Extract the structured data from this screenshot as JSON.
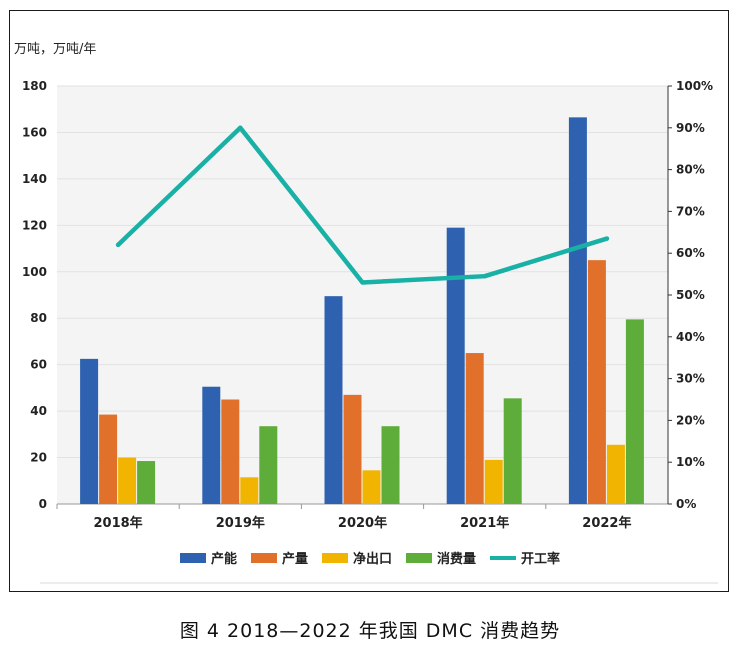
{
  "chart_data": {
    "type": "bar",
    "ylabel": "万吨，万吨/年",
    "categories": [
      "2018年",
      "2019年",
      "2020年",
      "2021年",
      "2022年"
    ],
    "ylim": [
      0,
      180
    ],
    "yticks": [
      "0",
      "20",
      "40",
      "60",
      "80",
      "100",
      "120",
      "140",
      "160",
      "180"
    ],
    "y2lim": [
      0,
      100
    ],
    "y2ticks": [
      "0%",
      "10%",
      "20%",
      "30%",
      "40%",
      "50%",
      "60%",
      "70%",
      "80%",
      "90%",
      "100%"
    ],
    "series": [
      {
        "name": "产能",
        "type": "bar",
        "color": "#2e62b0",
        "values": [
          62.5,
          50.5,
          89.5,
          119,
          166.5
        ]
      },
      {
        "name": "产量",
        "type": "bar",
        "color": "#e0702a",
        "values": [
          38.5,
          45,
          47,
          65,
          105
        ]
      },
      {
        "name": "净出口",
        "type": "bar",
        "color": "#f1b400",
        "values": [
          20,
          11.5,
          14.5,
          19,
          25.5
        ]
      },
      {
        "name": "消费量",
        "type": "bar",
        "color": "#5eac3a",
        "values": [
          18.5,
          33.5,
          33.5,
          45.5,
          79.5
        ]
      },
      {
        "name": "开工率",
        "type": "line",
        "axis": "right",
        "color": "#19b0a5",
        "values": [
          62,
          90,
          53,
          54.5,
          63.5
        ]
      }
    ],
    "grid": true,
    "legend_position": "bottom"
  },
  "caption": "图 4 2018—2022 年我国 DMC 消费趋势"
}
